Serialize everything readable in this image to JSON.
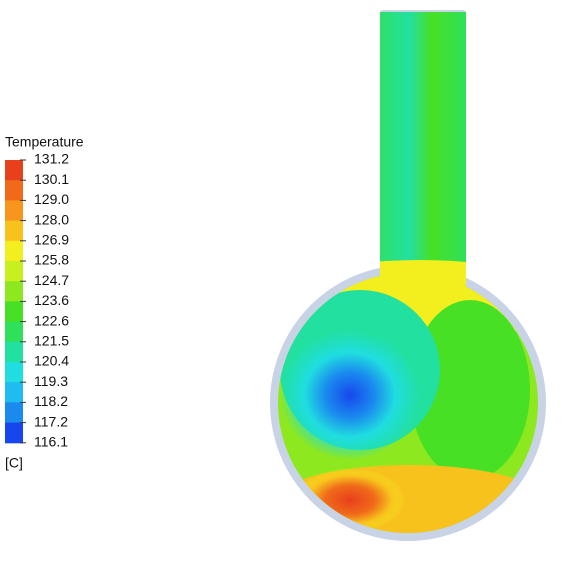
{
  "legend": {
    "title": "Temperature",
    "levels": [
      "131.2",
      "130.1",
      "129.0",
      "128.0",
      "126.9",
      "125.8",
      "124.7",
      "123.6",
      "122.6",
      "121.5",
      "120.4",
      "119.3",
      "118.2",
      "117.2",
      "116.1"
    ],
    "colors": [
      "#e8401c",
      "#f06a1a",
      "#f7951c",
      "#f8c21d",
      "#f3ee1e",
      "#c8ef20",
      "#8ee81f",
      "#48e024",
      "#2ee05a",
      "#22e0a0",
      "#20dde0",
      "#1ebcf0",
      "#1a8aef",
      "#1747ec"
    ],
    "unit": "[C]"
  }
}
